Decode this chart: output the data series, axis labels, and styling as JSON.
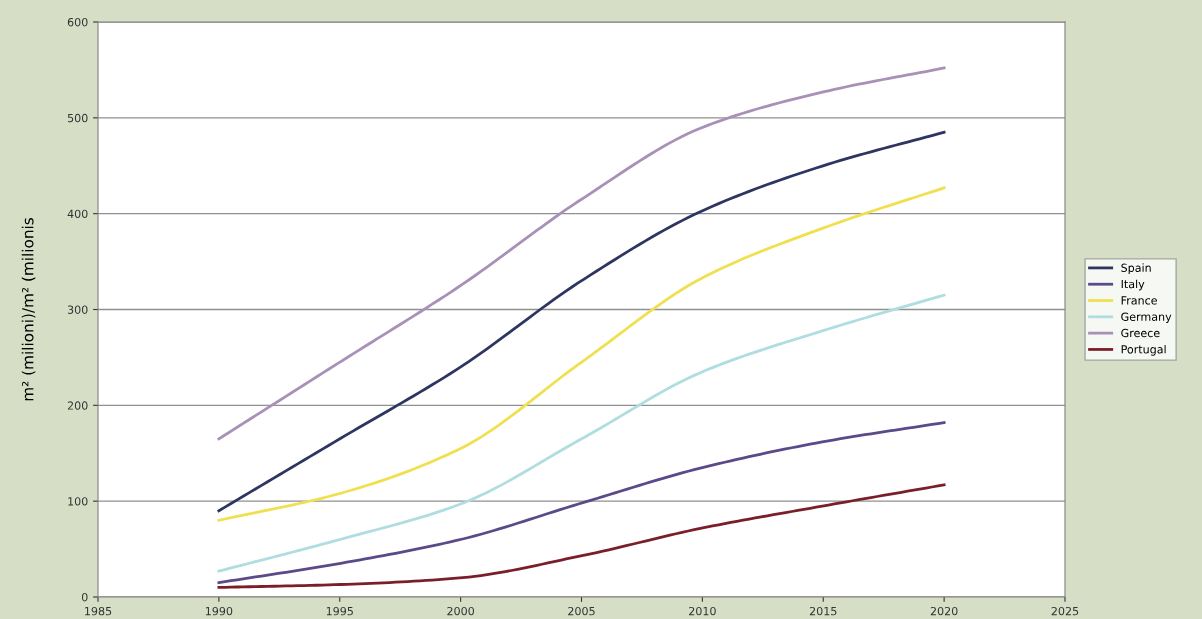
{
  "chart_data": {
    "type": "line",
    "ylabel": "m² (milioni)/m² (milionis",
    "x": [
      1990,
      1995,
      2000,
      2005,
      2010,
      2015,
      2020
    ],
    "series": [
      {
        "name": "Spain",
        "color": "#2e3560",
        "values": [
          90,
          165,
          240,
          330,
          403,
          450,
          485
        ]
      },
      {
        "name": "Italy",
        "color": "#5a4a8a",
        "values": [
          15,
          35,
          60,
          98,
          135,
          162,
          182
        ]
      },
      {
        "name": "France",
        "color": "#f0e050",
        "values": [
          80,
          108,
          155,
          245,
          333,
          385,
          427
        ]
      },
      {
        "name": "Germany",
        "color": "#b0dde0",
        "values": [
          27,
          60,
          97,
          165,
          235,
          278,
          315
        ]
      },
      {
        "name": "Greece",
        "color": "#a890b8",
        "values": [
          165,
          245,
          325,
          415,
          490,
          527,
          552
        ]
      },
      {
        "name": "Portugal",
        "color": "#7a1f2a",
        "values": [
          10,
          13,
          20,
          43,
          72,
          95,
          117
        ]
      }
    ],
    "xlim": [
      1985,
      2025
    ],
    "xticks": [
      1985,
      1990,
      1995,
      2000,
      2005,
      2010,
      2015,
      2020,
      2025
    ],
    "ylim": [
      0,
      600
    ],
    "yticks": [
      0,
      100,
      200,
      300,
      400,
      500,
      600
    ],
    "grid": "y",
    "legend": "right",
    "marker": "none",
    "line_style": "solid"
  }
}
